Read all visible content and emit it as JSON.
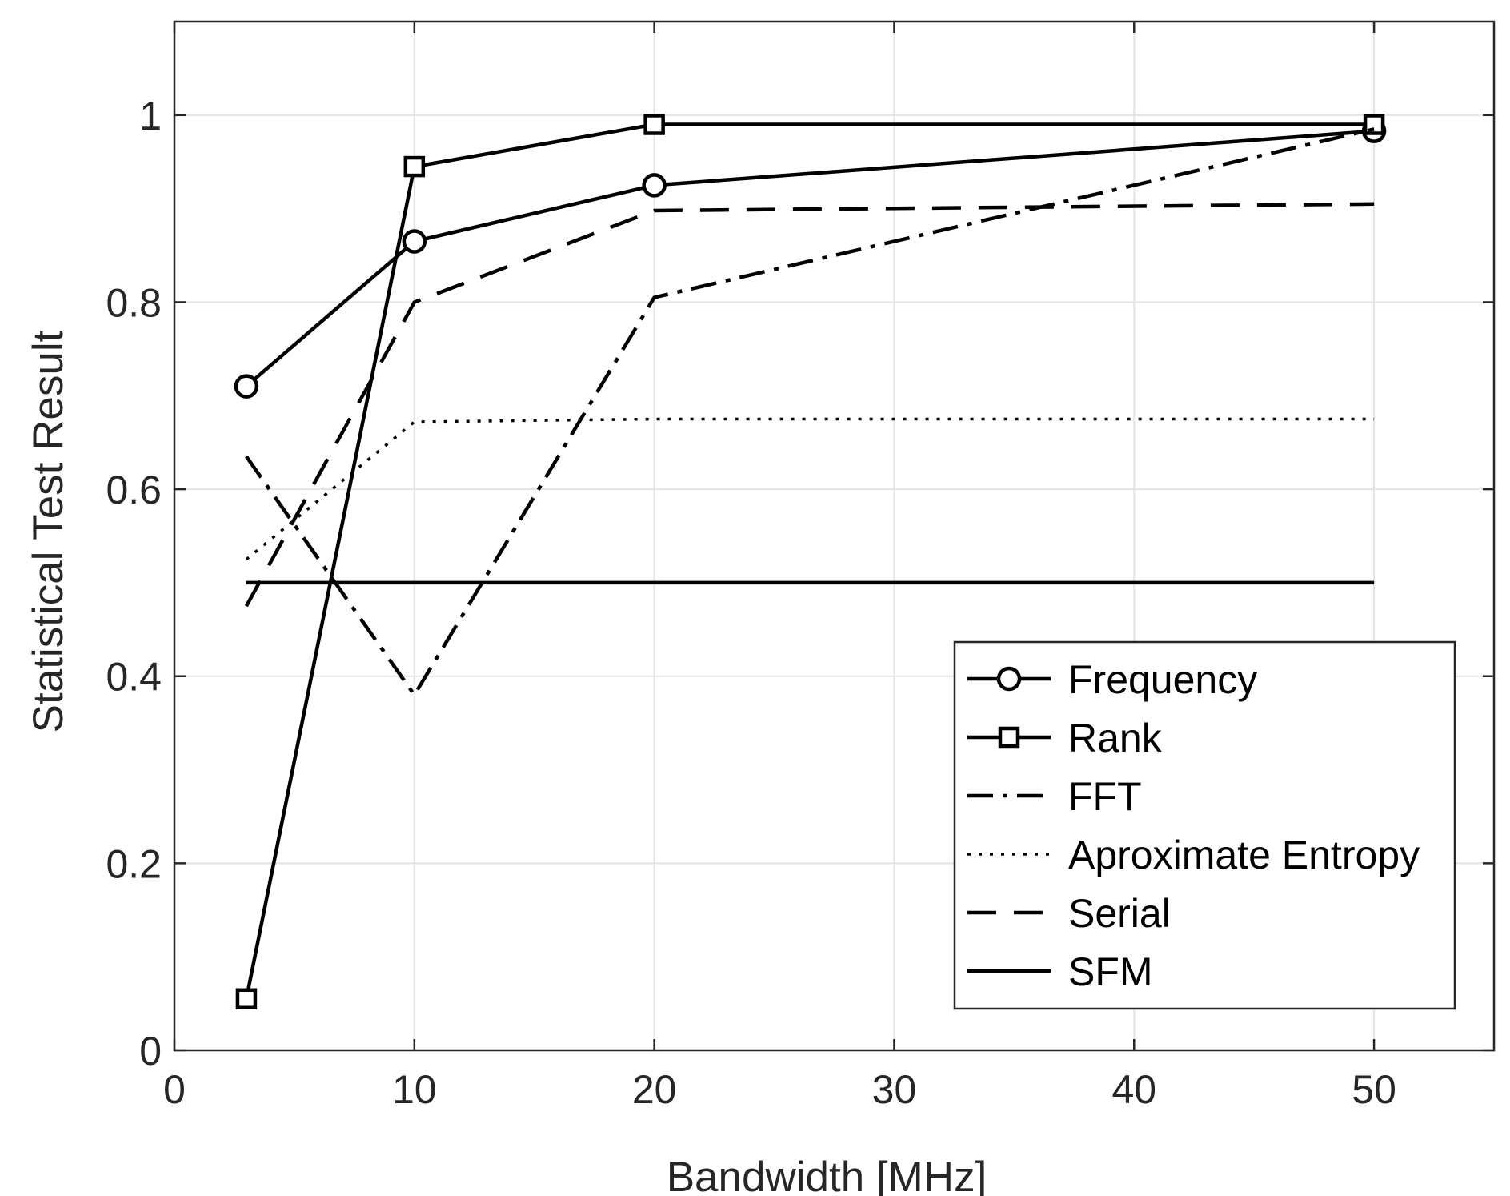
{
  "chart_data": {
    "type": "line",
    "xlabel": "Bandwidth [MHz]",
    "ylabel": "Statistical Test Result",
    "xlim": [
      0,
      55
    ],
    "ylim": [
      0,
      1.1
    ],
    "xticks": [
      0,
      10,
      20,
      30,
      40,
      50
    ],
    "yticks": [
      0,
      0.2,
      0.4,
      0.6,
      0.8,
      1
    ],
    "xtick_labels": [
      "0",
      "10",
      "20",
      "30",
      "40",
      "50"
    ],
    "ytick_labels": [
      "0",
      "0.2",
      "0.4",
      "0.6",
      "0.8",
      "1"
    ],
    "grid": true,
    "legend_position": "bottom-right",
    "series": [
      {
        "name": "Frequency",
        "x": [
          3,
          10,
          20,
          50
        ],
        "y": [
          0.71,
          0.865,
          0.925,
          0.983
        ],
        "line_style": "solid",
        "marker": "circle",
        "color": "#000000"
      },
      {
        "name": "Rank",
        "x": [
          3,
          10,
          20,
          50
        ],
        "y": [
          0.055,
          0.945,
          0.99,
          0.99
        ],
        "line_style": "solid",
        "marker": "square",
        "color": "#000000"
      },
      {
        "name": "FFT",
        "x": [
          3,
          10,
          20,
          50
        ],
        "y": [
          0.635,
          0.38,
          0.805,
          0.985
        ],
        "line_style": "dash-dot",
        "marker": "none",
        "color": "#000000"
      },
      {
        "name": "Aproximate Entropy",
        "x": [
          3,
          10,
          20,
          50
        ],
        "y": [
          0.525,
          0.672,
          0.675,
          0.675
        ],
        "line_style": "dotted",
        "marker": "none",
        "color": "#000000"
      },
      {
        "name": "Serial",
        "x": [
          3,
          10,
          20,
          50
        ],
        "y": [
          0.475,
          0.8,
          0.898,
          0.905
        ],
        "line_style": "dashed",
        "marker": "none",
        "color": "#000000"
      },
      {
        "name": "SFM",
        "x": [
          3,
          50
        ],
        "y": [
          0.5,
          0.5
        ],
        "line_style": "solid",
        "marker": "none",
        "color": "#000000"
      }
    ]
  }
}
